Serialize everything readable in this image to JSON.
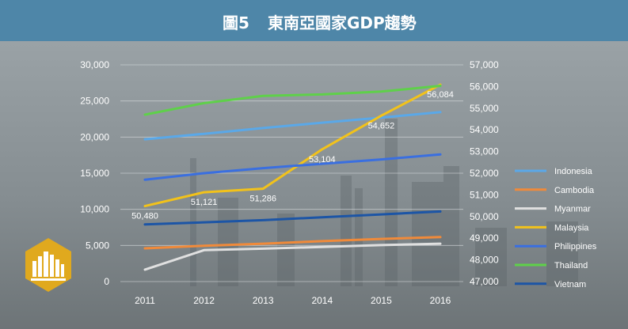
{
  "header": {
    "figure_number": "圖5",
    "title": "東南亞國家GDP趨勢"
  },
  "colors": {
    "header_bg": "#4e86a8",
    "Indonesia": "#5aa8e8",
    "Cambodia": "#f08a3a",
    "Myanmar": "#e0e0e0",
    "Malaysia": "#f2c21a",
    "Philippines": "#3a6fe0",
    "Thailand": "#5fd04a",
    "Vietnam": "#1c55a6",
    "badge": "#e0a91e"
  },
  "chart_data": {
    "type": "line",
    "x": [
      "2011",
      "2012",
      "2013",
      "2014",
      "2015",
      "2016"
    ],
    "left_axis": {
      "ticks": [
        "30,000",
        "25,000",
        "20,000",
        "15,000",
        "10,000",
        "5,000",
        "0"
      ],
      "ylim": [
        0,
        30000
      ]
    },
    "right_axis": {
      "ticks": [
        "57,000",
        "56,000",
        "55,000",
        "54,000",
        "53,000",
        "52,000",
        "51,000",
        "50,000",
        "49,000",
        "48,000",
        "47,000"
      ],
      "ylim": [
        47000,
        57000
      ]
    },
    "legend_position": "right",
    "series": [
      {
        "name": "Indonesia",
        "axis": "left",
        "values": [
          19700,
          20450,
          21250,
          22000,
          22700,
          23450
        ]
      },
      {
        "name": "Cambodia",
        "axis": "left",
        "values": [
          4600,
          4950,
          5250,
          5600,
          5900,
          6150
        ]
      },
      {
        "name": "Myanmar",
        "axis": "left",
        "values": [
          1650,
          4350,
          4550,
          4800,
          5050,
          5250
        ]
      },
      {
        "name": "Malaysia",
        "axis": "right",
        "values": [
          50480,
          51121,
          51286,
          53104,
          54652,
          56084
        ],
        "data_labels": [
          "50,480",
          "51,121",
          "51,286",
          "53,104",
          "54,652",
          "56,084"
        ]
      },
      {
        "name": "Philippines",
        "axis": "left",
        "values": [
          14100,
          15000,
          15700,
          16300,
          16900,
          17600
        ]
      },
      {
        "name": "Thailand",
        "axis": "left",
        "values": [
          23100,
          24700,
          25700,
          25900,
          26300,
          27100
        ]
      },
      {
        "name": "Vietnam",
        "axis": "left",
        "values": [
          7900,
          8200,
          8500,
          8900,
          9300,
          9700
        ]
      }
    ]
  }
}
